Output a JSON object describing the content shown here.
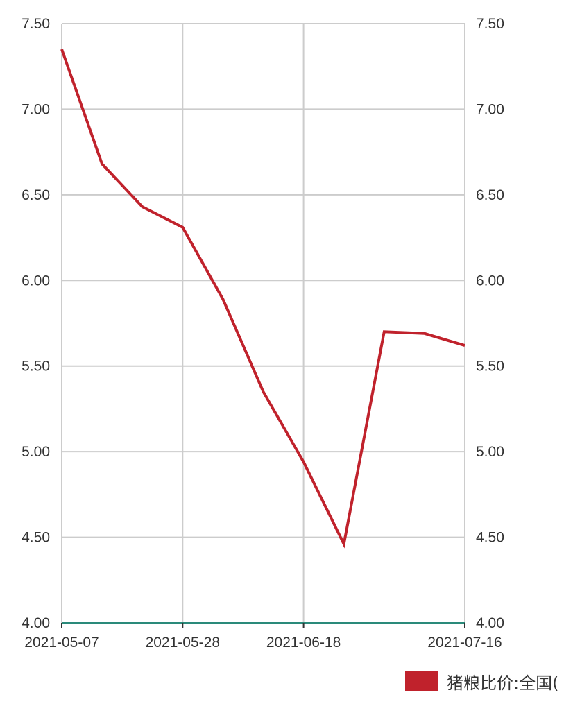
{
  "chart_data": {
    "type": "line",
    "x": [
      "2021-05-07",
      "2021-05-14",
      "2021-05-21",
      "2021-05-28",
      "2021-06-04",
      "2021-06-11",
      "2021-06-18",
      "2021-06-25",
      "2021-07-02",
      "2021-07-09",
      "2021-07-16"
    ],
    "series": [
      {
        "name": "猪粮比价:全国(",
        "values": [
          7.35,
          6.68,
          6.43,
          6.31,
          5.89,
          5.35,
          4.94,
          4.46,
          5.7,
          5.69,
          5.62
        ],
        "color": "#c0222c"
      }
    ],
    "x_tick_labels": [
      "2021-05-07",
      "2021-05-28",
      "2021-06-18",
      "2021-07-16"
    ],
    "y_tick_labels": [
      "4.00",
      "4.50",
      "5.00",
      "5.50",
      "6.00",
      "6.50",
      "7.00",
      "7.50"
    ],
    "ylim": [
      4.0,
      7.5
    ],
    "grid": true,
    "dual_y_axis": true,
    "legend_position": "bottom-right",
    "baseline_color": "#2a8a7a"
  }
}
